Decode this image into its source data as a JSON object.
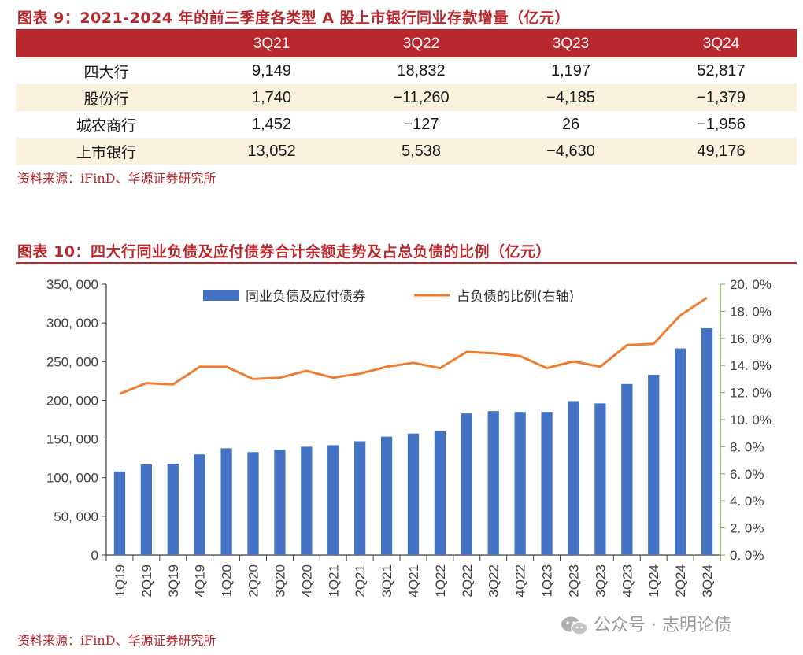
{
  "table_section": {
    "title": "图表 9：2021-2024 年的前三季度各类型 A 股上市银行同业存款增量（亿元）",
    "columns": [
      "",
      "3Q21",
      "3Q22",
      "3Q23",
      "3Q24"
    ],
    "rows": [
      {
        "label": "四大行",
        "values": [
          "9,149",
          "18,832",
          "1,197",
          "52,817"
        ]
      },
      {
        "label": "股份行",
        "values": [
          "1,740",
          "−11,260",
          "−4,185",
          "−1,379"
        ]
      },
      {
        "label": "城农商行",
        "values": [
          "1,452",
          "−127",
          "26",
          "−1,956"
        ]
      },
      {
        "label": "上市银行",
        "values": [
          "13,052",
          "5,538",
          "−4,630",
          "49,176"
        ]
      }
    ],
    "source": "资料来源：iFinD、华源证券研究所",
    "header_color": "#b8282d",
    "alt_row_color": "#fbf2dd"
  },
  "chart_section": {
    "title": "图表 10：四大行同业负债及应付债券合计余额走势及占总负债的比例（亿元）",
    "source": "资料来源：iFinD、华源证券研究所"
  },
  "chart_data": {
    "type": "bar",
    "categories": [
      "1Q19",
      "2Q19",
      "3Q19",
      "4Q19",
      "1Q20",
      "2Q20",
      "3Q20",
      "4Q20",
      "1Q21",
      "2Q21",
      "3Q21",
      "4Q21",
      "1Q22",
      "2Q22",
      "3Q22",
      "4Q22",
      "1Q23",
      "2Q23",
      "3Q23",
      "4Q23",
      "1Q24",
      "2Q24",
      "3Q24"
    ],
    "series": [
      {
        "name": "同业负债及应付债券",
        "type": "bar",
        "axis": "left",
        "color": "#4472c4",
        "values": [
          108000,
          117000,
          118000,
          130000,
          138000,
          133000,
          136000,
          140000,
          142000,
          147000,
          153000,
          157000,
          160000,
          183000,
          186000,
          185000,
          185000,
          199000,
          196000,
          221000,
          233000,
          267000,
          293000
        ]
      },
      {
        "name": "占负债的比例(右轴)",
        "type": "line",
        "axis": "right",
        "color": "#ed7d31",
        "values": [
          11.9,
          12.7,
          12.6,
          13.9,
          13.9,
          13.0,
          13.1,
          13.6,
          13.1,
          13.4,
          13.9,
          14.2,
          13.8,
          15.0,
          14.9,
          14.7,
          13.8,
          14.3,
          13.9,
          15.5,
          15.6,
          17.7,
          19.0
        ]
      }
    ],
    "y_left": {
      "min": 0,
      "max": 350000,
      "step": 50000,
      "tick_labels": [
        "0",
        "50, 000",
        "100, 000",
        "150, 000",
        "200, 000",
        "250, 000",
        "300, 000",
        "350, 000"
      ]
    },
    "y_right": {
      "min": 0,
      "max": 20,
      "step": 2,
      "tick_labels": [
        "0. 0%",
        "2. 0%",
        "4. 0%",
        "6. 0%",
        "8. 0%",
        "10. 0%",
        "12. 0%",
        "14. 0%",
        "16. 0%",
        "18. 0%",
        "20. 0%"
      ],
      "color": "#70ad47"
    },
    "legend_position": "top-center",
    "grid": false
  },
  "watermark": {
    "text": "公众号 · 志明论债"
  }
}
